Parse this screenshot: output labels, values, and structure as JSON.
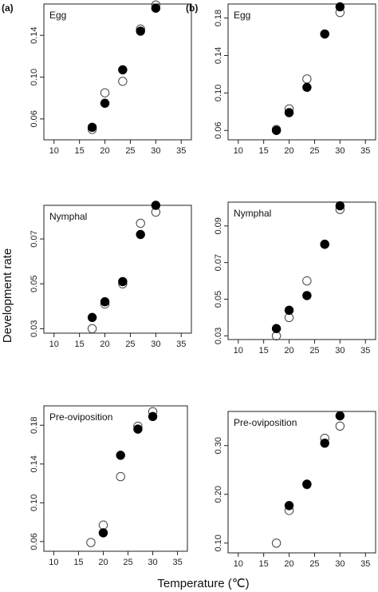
{
  "figure": {
    "ylabel": "Development rate",
    "xlabel": "Temperature (℃)"
  },
  "chart_data": [
    {
      "type": "scatter",
      "tag": "(a)",
      "title": "Egg",
      "xlim": [
        8,
        37
      ],
      "ylim": [
        0.04,
        0.17
      ],
      "xticks": [
        "10",
        "15",
        "20",
        "25",
        "30",
        "35"
      ],
      "yticks": [
        "0.06",
        "0.10",
        "0.14"
      ],
      "series": [
        {
          "marker": "open",
          "x": [
            17.5,
            20.0,
            23.5,
            27.0,
            30.0
          ],
          "y": [
            0.05,
            0.085,
            0.096,
            0.146,
            0.169
          ]
        },
        {
          "marker": "filled",
          "x": [
            17.5,
            20.0,
            23.5,
            27.0,
            30.0
          ],
          "y": [
            0.052,
            0.075,
            0.107,
            0.144,
            0.166
          ]
        }
      ]
    },
    {
      "type": "scatter",
      "tag": "(b)",
      "title": "Egg",
      "xlim": [
        8,
        37
      ],
      "ylim": [
        0.05,
        0.195
      ],
      "xticks": [
        "10",
        "15",
        "20",
        "25",
        "30",
        "35"
      ],
      "yticks": [
        "0.06",
        "0.10",
        "0.14",
        "0.18"
      ],
      "series": [
        {
          "marker": "open",
          "x": [
            17.5,
            20.0,
            23.5,
            27.0,
            30.0
          ],
          "y": [
            0.061,
            0.083,
            0.115,
            0.163,
            0.186
          ]
        },
        {
          "marker": "filled",
          "x": [
            17.5,
            20.0,
            23.5,
            27.0,
            30.0
          ],
          "y": [
            0.06,
            0.079,
            0.106,
            0.163,
            0.192
          ]
        }
      ]
    },
    {
      "type": "scatter",
      "tag": "",
      "title": "Nymphal",
      "xlim": [
        8,
        37
      ],
      "ylim": [
        0.028,
        0.085
      ],
      "xticks": [
        "10",
        "15",
        "20",
        "25",
        "30",
        "35"
      ],
      "yticks": [
        "0.03",
        "0.05",
        "0.07"
      ],
      "series": [
        {
          "marker": "open",
          "x": [
            17.5,
            20.0,
            23.5,
            27.0,
            30.0
          ],
          "y": [
            0.03,
            0.041,
            0.05,
            0.077,
            0.082
          ]
        },
        {
          "marker": "filled",
          "x": [
            17.5,
            20.0,
            23.5,
            27.0,
            30.0
          ],
          "y": [
            0.035,
            0.042,
            0.051,
            0.072,
            0.085
          ]
        }
      ]
    },
    {
      "type": "scatter",
      "tag": "",
      "title": "Nymphal",
      "xlim": [
        8,
        37
      ],
      "ylim": [
        0.028,
        0.103
      ],
      "xticks": [
        "10",
        "15",
        "20",
        "25",
        "30",
        "35"
      ],
      "yticks": [
        "0.03",
        "0.05",
        "0.07",
        "0.09"
      ],
      "series": [
        {
          "marker": "open",
          "x": [
            17.5,
            20.0,
            23.5,
            27.0,
            30.0
          ],
          "y": [
            0.03,
            0.04,
            0.06,
            0.08,
            0.099
          ]
        },
        {
          "marker": "filled",
          "x": [
            17.5,
            20.0,
            23.5,
            27.0,
            30.0
          ],
          "y": [
            0.034,
            0.044,
            0.052,
            0.08,
            0.101
          ]
        }
      ]
    },
    {
      "type": "scatter",
      "tag": "",
      "title": "Pre-oviposition",
      "xlim": [
        8,
        37
      ],
      "ylim": [
        0.05,
        0.2
      ],
      "xticks": [
        "10",
        "15",
        "20",
        "25",
        "30",
        "35"
      ],
      "yticks": [
        "0.06",
        "0.10",
        "0.14",
        "0.18"
      ],
      "series": [
        {
          "marker": "open",
          "x": [
            17.5,
            20.0,
            23.5,
            27.0,
            30.0
          ],
          "y": [
            0.059,
            0.077,
            0.127,
            0.179,
            0.194
          ]
        },
        {
          "marker": "filled",
          "x": [
            20.0,
            23.5,
            27.0,
            30.0
          ],
          "y": [
            0.069,
            0.149,
            0.176,
            0.189
          ]
        }
      ]
    },
    {
      "type": "scatter",
      "tag": "",
      "title": "Pre-oviposition",
      "xlim": [
        8,
        37
      ],
      "ylim": [
        0.08,
        0.37
      ],
      "xticks": [
        "10",
        "15",
        "20",
        "25",
        "30",
        "35"
      ],
      "yticks": [
        "0.10",
        "0.20",
        "0.30"
      ],
      "series": [
        {
          "marker": "open",
          "x": [
            17.5,
            20.0,
            23.5,
            27.0,
            30.0
          ],
          "y": [
            0.1,
            0.167,
            0.22,
            0.315,
            0.34
          ]
        },
        {
          "marker": "filled",
          "x": [
            20.0,
            23.5,
            27.0,
            30.0
          ],
          "y": [
            0.177,
            0.221,
            0.305,
            0.361
          ]
        }
      ]
    }
  ]
}
